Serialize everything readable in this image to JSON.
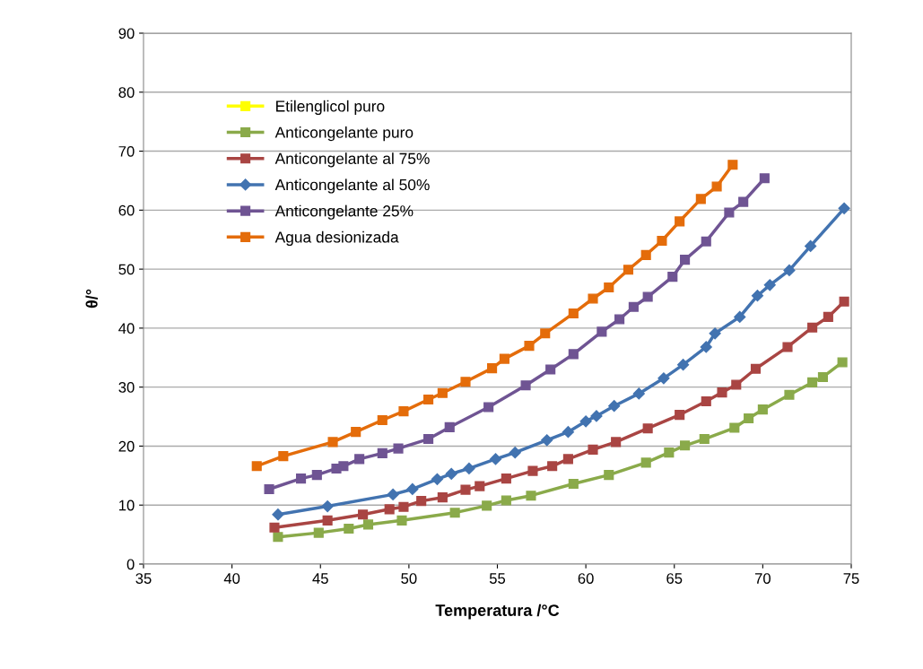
{
  "chart_data": {
    "type": "line",
    "xlabel": "Temperatura /°C",
    "ylabel": "θ/°",
    "xlim": [
      35,
      75
    ],
    "xticks": [
      35,
      40,
      45,
      50,
      55,
      60,
      65,
      70,
      75
    ],
    "ylim": [
      0,
      90
    ],
    "yticks": [
      0,
      10,
      20,
      30,
      40,
      50,
      60,
      70,
      80,
      90
    ],
    "grid": "y",
    "legend": "top left",
    "marker": "square",
    "line_style": "solid",
    "series": [
      {
        "name": "Etilenglicol puro",
        "color": "#ffff00"
      },
      {
        "name": "Anticongelante puro",
        "color": "#8aaa4a",
        "x": [
          42.6,
          44.9,
          46.6,
          47.7,
          49.6,
          52.6,
          54.4,
          55.5,
          56.9,
          59.3,
          61.3,
          63.4,
          64.7,
          65.6,
          66.7,
          68.4,
          69.2,
          70.0,
          71.5,
          72.8,
          73.4,
          74.5
        ],
        "values": [
          4.6,
          5.3,
          6.0,
          6.7,
          7.4,
          8.7,
          9.9,
          10.8,
          11.6,
          13.6,
          15.1,
          17.2,
          18.9,
          20.1,
          21.2,
          23.1,
          24.7,
          26.2,
          28.7,
          30.8,
          31.7,
          34.2
        ]
      },
      {
        "name": "Anticongelante al 75%",
        "color": "#a94543",
        "x": [
          42.4,
          45.4,
          47.4,
          48.9,
          49.7,
          50.7,
          51.9,
          53.2,
          54.0,
          55.5,
          57.0,
          58.1,
          59.0,
          60.4,
          61.7,
          63.5,
          65.3,
          66.8,
          67.7,
          68.5,
          69.6,
          71.4,
          72.8,
          73.7,
          74.6
        ],
        "values": [
          6.2,
          7.4,
          8.4,
          9.3,
          9.7,
          10.7,
          11.3,
          12.6,
          13.2,
          14.5,
          15.8,
          16.6,
          17.8,
          19.4,
          20.7,
          23.0,
          25.3,
          27.6,
          29.1,
          30.4,
          33.1,
          36.8,
          40.1,
          41.9,
          44.5
        ]
      },
      {
        "name": "Anticongelante al 50%",
        "color": "#4273b0",
        "marker": "diamond",
        "x": [
          42.6,
          45.4,
          49.1,
          50.2,
          51.6,
          52.4,
          53.4,
          54.9,
          56.0,
          57.8,
          59.0,
          60.0,
          60.6,
          61.6,
          63.0,
          64.4,
          65.5,
          66.8,
          67.3,
          68.7,
          69.7,
          70.4,
          71.5,
          72.7,
          74.6
        ],
        "values": [
          8.4,
          9.8,
          11.8,
          12.7,
          14.4,
          15.3,
          16.2,
          17.8,
          18.9,
          21.0,
          22.4,
          24.2,
          25.1,
          26.8,
          28.9,
          31.5,
          33.8,
          36.8,
          39.1,
          41.9,
          45.5,
          47.3,
          49.8,
          53.9,
          60.3
        ]
      },
      {
        "name": "Anticongelante 25%",
        "color": "#6f5493",
        "x": [
          42.1,
          43.9,
          44.8,
          45.9,
          46.3,
          47.2,
          48.5,
          49.4,
          51.1,
          52.3,
          54.5,
          56.6,
          58.0,
          59.3,
          60.9,
          61.9,
          62.7,
          63.5,
          64.9,
          65.6,
          66.8,
          68.1,
          68.9,
          70.1
        ],
        "values": [
          12.7,
          14.5,
          15.1,
          16.2,
          16.6,
          17.8,
          18.8,
          19.6,
          21.2,
          23.2,
          26.6,
          30.3,
          33.0,
          35.6,
          39.4,
          41.5,
          43.6,
          45.3,
          48.7,
          51.6,
          54.7,
          59.6,
          61.4,
          65.4
        ]
      },
      {
        "name": "Agua desionizada",
        "color": "#e46c0a",
        "x": [
          41.4,
          42.9,
          45.7,
          47.0,
          48.5,
          49.7,
          51.1,
          51.9,
          53.2,
          54.7,
          55.4,
          56.8,
          57.7,
          59.3,
          60.4,
          61.3,
          62.4,
          63.4,
          64.3,
          65.3,
          66.5,
          67.4,
          68.3
        ],
        "values": [
          16.6,
          18.3,
          20.7,
          22.4,
          24.4,
          25.9,
          27.9,
          29.0,
          30.9,
          33.2,
          34.8,
          37.0,
          39.1,
          42.5,
          45.0,
          46.9,
          49.9,
          52.4,
          54.8,
          58.1,
          61.9,
          64.0,
          67.7
        ]
      }
    ]
  }
}
